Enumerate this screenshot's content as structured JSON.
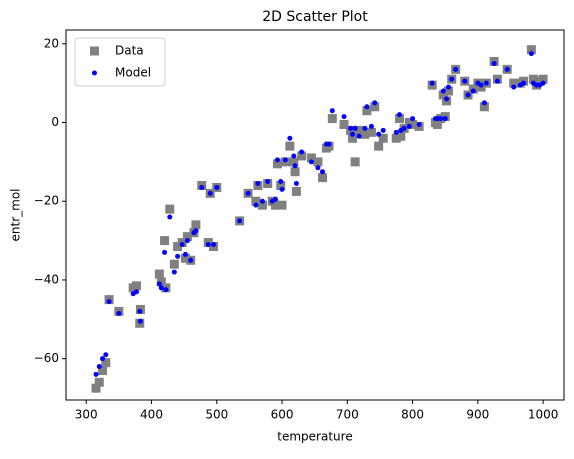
{
  "chart_data": {
    "type": "scatter",
    "title": "2D Scatter Plot",
    "x_label": "temperature",
    "y_label": "entr_mol",
    "x": [
      315,
      320,
      325,
      330,
      335,
      350,
      372,
      377,
      382,
      383,
      412,
      415,
      420,
      422,
      428,
      435,
      440,
      447,
      452,
      455,
      460,
      465,
      468,
      477,
      487,
      490,
      495,
      500,
      535,
      548,
      560,
      563,
      570,
      578,
      585,
      590,
      593,
      598,
      600,
      605,
      612,
      618,
      620,
      622,
      630,
      645,
      655,
      662,
      668,
      672,
      677,
      695,
      705,
      708,
      712,
      718,
      727,
      730,
      737,
      742,
      748,
      755,
      775,
      780,
      782,
      787,
      795,
      800,
      810,
      830,
      835,
      838,
      843,
      847,
      850,
      852,
      855,
      860,
      866,
      880,
      885,
      893,
      900,
      905,
      910,
      913,
      925,
      930,
      945,
      955,
      965,
      970,
      982,
      985,
      990,
      995,
      1000
    ],
    "series": [
      {
        "name": "Data",
        "color": "#808080",
        "marker": "square",
        "values": [
          -67.5,
          -66,
          -63,
          -61,
          -45,
          -48,
          -42,
          -41.5,
          -51,
          -47.5,
          -38.5,
          -40.5,
          -30,
          -42,
          -22,
          -36,
          -31.5,
          -30.5,
          -34.5,
          -29,
          -35,
          -28,
          -26,
          -16,
          -30.5,
          -18,
          -31.5,
          -16.5,
          -25,
          -18,
          -20,
          -16,
          -21,
          -15.5,
          -20,
          -21,
          -10.5,
          -16,
          -21,
          -10,
          -6,
          -10,
          -12.5,
          -17.5,
          -8.5,
          -9,
          -10,
          -14,
          -6.5,
          -6,
          1,
          -0.5,
          -2,
          -4,
          -10,
          -2,
          -3,
          3,
          -2.5,
          4,
          -6,
          -4,
          -4,
          1,
          -3.5,
          -1.5,
          0,
          -0.5,
          -1,
          9.5,
          0,
          -0.5,
          1,
          7,
          1.5,
          5.5,
          8,
          11,
          13.5,
          10.5,
          7,
          8.5,
          10,
          9,
          4,
          10,
          15.5,
          11,
          13.5,
          10,
          10,
          10.5,
          18.5,
          11,
          9.5,
          10.5,
          11
        ]
      },
      {
        "name": "Model",
        "color": "#0000ff",
        "marker": "circle",
        "values": [
          -64,
          -62,
          -60,
          -59,
          -45.5,
          -48.5,
          -43.5,
          -43,
          -48,
          -50.5,
          -41,
          -42,
          -33,
          -42.5,
          -24,
          -38,
          -34,
          -31,
          -33.5,
          -30,
          -35,
          -28,
          -27.5,
          -16.5,
          -31,
          -18,
          -31,
          -16.5,
          -25,
          -18,
          -21,
          -15.5,
          -20,
          -15,
          -20,
          -19.5,
          -9.5,
          -15,
          -17,
          -9.5,
          -4,
          -8.5,
          -11,
          -15.5,
          -7.5,
          -10,
          -11.5,
          -12.5,
          -5.5,
          -5.5,
          3,
          1.5,
          -1.5,
          -3,
          -1.5,
          -3.5,
          -1.5,
          4,
          -1,
          5,
          -3,
          -2,
          -2.5,
          2,
          -2,
          -1.5,
          -1,
          1,
          -0.5,
          10,
          1,
          1,
          1,
          8,
          1,
          6,
          9,
          11,
          13.5,
          10.5,
          7,
          8,
          10,
          9.5,
          5,
          10,
          15,
          10.5,
          13.5,
          9,
          9.5,
          10,
          17.5,
          10,
          9.5,
          9.5,
          10
        ]
      }
    ],
    "xlim": [
      269,
      1032
    ],
    "ylim": [
      -70.5,
      23.5
    ],
    "xticks": [
      300,
      400,
      500,
      600,
      700,
      800,
      900,
      1000
    ],
    "yticks": [
      {
        "value": -60,
        "label": "−60"
      },
      {
        "value": -40,
        "label": "−40"
      },
      {
        "value": -20,
        "label": "−20"
      },
      0,
      20
    ],
    "legend": "upper left"
  }
}
